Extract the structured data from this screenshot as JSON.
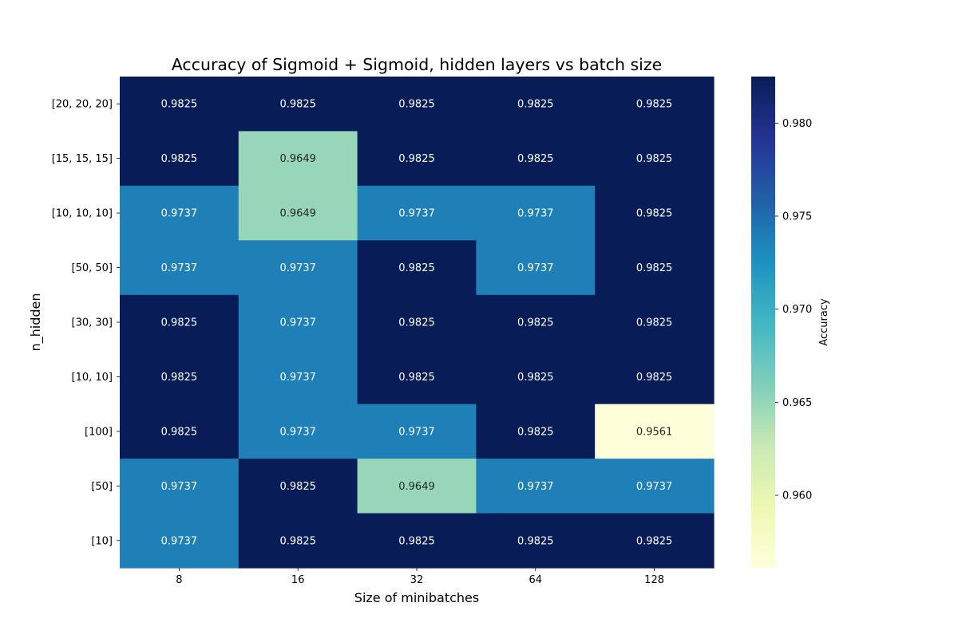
{
  "chart_data": {
    "type": "heatmap",
    "title": "Accuracy of Sigmoid + Sigmoid, hidden layers vs batch size",
    "xlabel": "Size of minibatches",
    "ylabel": "n_hidden",
    "x_categories": [
      "8",
      "16",
      "32",
      "64",
      "128"
    ],
    "y_categories": [
      "[20, 20, 20]",
      "[15, 15, 15]",
      "[10, 10, 10]",
      "[50, 50]",
      "[30, 30]",
      "[10, 10]",
      "[100]",
      "[50]",
      "[10]"
    ],
    "values": [
      [
        0.9825,
        0.9825,
        0.9825,
        0.9825,
        0.9825
      ],
      [
        0.9825,
        0.9649,
        0.9825,
        0.9825,
        0.9825
      ],
      [
        0.9737,
        0.9649,
        0.9737,
        0.9737,
        0.9825
      ],
      [
        0.9737,
        0.9737,
        0.9825,
        0.9737,
        0.9825
      ],
      [
        0.9825,
        0.9737,
        0.9825,
        0.9825,
        0.9825
      ],
      [
        0.9825,
        0.9737,
        0.9825,
        0.9825,
        0.9825
      ],
      [
        0.9825,
        0.9737,
        0.9737,
        0.9825,
        0.9561
      ],
      [
        0.9737,
        0.9825,
        0.9649,
        0.9737,
        0.9737
      ],
      [
        0.9737,
        0.9825,
        0.9825,
        0.9825,
        0.9825
      ]
    ],
    "value_labels_decimals": 4,
    "colormap": "YlGnBu",
    "colormap_stops": [
      "#ffffd9",
      "#edf8b1",
      "#c7e9b4",
      "#7fcdbb",
      "#41b6c4",
      "#1d91c0",
      "#225ea8",
      "#253494",
      "#081d58"
    ],
    "vmin": 0.9561,
    "vmax": 0.9825,
    "colorbar": {
      "label": "Accuracy",
      "ticks": [
        0.96,
        0.965,
        0.97,
        0.975,
        0.98
      ],
      "tick_labels": [
        "0.960",
        "0.965",
        "0.970",
        "0.975",
        "0.980"
      ]
    }
  }
}
